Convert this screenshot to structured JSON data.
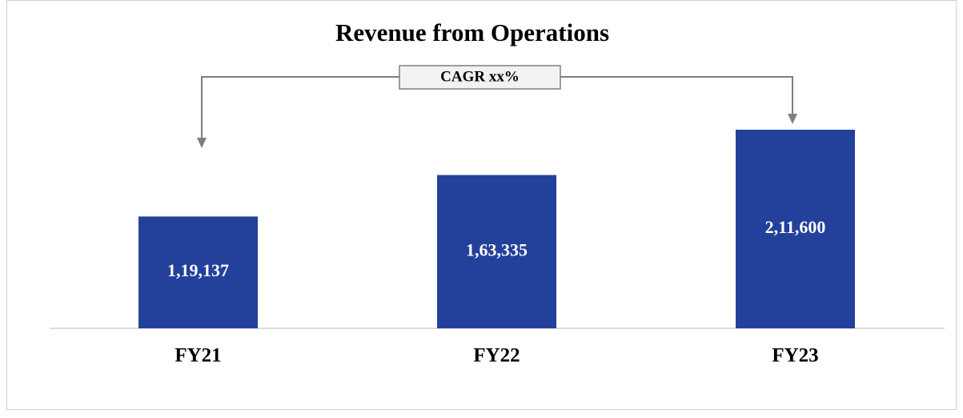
{
  "chart_data": {
    "type": "bar",
    "title": "Revenue from Operations",
    "annotation": "CAGR xx%",
    "categories": [
      "FY21",
      "FY22",
      "FY23"
    ],
    "values": [
      119137,
      163335,
      211600
    ],
    "value_labels": [
      "1,19,137",
      "1,63,335",
      "2,11,600"
    ],
    "color": "#23409a"
  }
}
